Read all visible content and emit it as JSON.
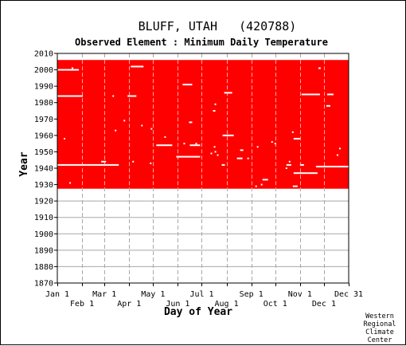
{
  "chart_data": {
    "type": "heatmap",
    "title": "BLUFF, UTAH   (420788)",
    "subtitle": "Observed Element : Minimum Daily Temperature",
    "xlabel": "Day of Year",
    "ylabel": "Year",
    "xlim": [
      1,
      366
    ],
    "ylim": [
      1870,
      2010
    ],
    "x_ticks_upper": [
      {
        "label": "Jan 1",
        "day": 1
      },
      {
        "label": "Mar 1",
        "day": 60
      },
      {
        "label": "May 1",
        "day": 121
      },
      {
        "label": "Jul 1",
        "day": 182
      },
      {
        "label": "Sep 1",
        "day": 244
      },
      {
        "label": "Nov 1",
        "day": 305
      },
      {
        "label": "Dec 31",
        "day": 366
      }
    ],
    "x_ticks_lower": [
      {
        "label": "Feb 1",
        "day": 32
      },
      {
        "label": "Apr 1",
        "day": 91
      },
      {
        "label": "Jun 1",
        "day": 152
      },
      {
        "label": "Aug 1",
        "day": 213
      },
      {
        "label": "Oct 1",
        "day": 274
      },
      {
        "label": "Dec 1",
        "day": 335
      }
    ],
    "y_ticks": [
      1870,
      1880,
      1890,
      1900,
      1910,
      1920,
      1930,
      1940,
      1950,
      1960,
      1970,
      1980,
      1990,
      2000,
      2010
    ],
    "grid": true,
    "data_color": "#ff0000",
    "record_period": {
      "start_year": 1927.5,
      "end_year": 2006
    },
    "missing_segments": [
      {
        "year": 2000,
        "day_start": 1,
        "day_end": 28
      },
      {
        "year": 2002,
        "day_start": 93,
        "day_end": 109
      },
      {
        "year": 1984,
        "day_start": 1,
        "day_end": 33
      },
      {
        "year": 1984,
        "day_start": 89,
        "day_end": 100
      },
      {
        "year": 1942,
        "day_start": 1,
        "day_end": 78
      },
      {
        "year": 1991,
        "day_start": 158,
        "day_end": 170
      },
      {
        "year": 1986,
        "day_start": 210,
        "day_end": 220
      },
      {
        "year": 1960,
        "day_start": 208,
        "day_end": 222
      },
      {
        "year": 1954,
        "day_start": 125,
        "day_end": 145
      },
      {
        "year": 1947,
        "day_start": 150,
        "day_end": 180
      },
      {
        "year": 1946,
        "day_start": 226,
        "day_end": 233
      },
      {
        "year": 1954,
        "day_start": 167,
        "day_end": 180
      },
      {
        "year": 1985,
        "day_start": 307,
        "day_end": 330
      },
      {
        "year": 1985,
        "day_start": 339,
        "day_end": 347
      },
      {
        "year": 1978,
        "day_start": 338,
        "day_end": 343
      },
      {
        "year": 1951,
        "day_start": 230,
        "day_end": 234
      },
      {
        "year": 1941,
        "day_start": 325,
        "day_end": 338
      },
      {
        "year": 1941,
        "day_start": 335,
        "day_end": 366
      },
      {
        "year": 1937,
        "day_start": 297,
        "day_end": 327
      },
      {
        "year": 1958,
        "day_start": 297,
        "day_end": 305
      },
      {
        "year": 1933,
        "day_start": 258,
        "day_end": 265
      },
      {
        "year": 1929,
        "day_start": 296,
        "day_end": 302
      },
      {
        "year": 1944,
        "day_start": 56,
        "day_end": 62
      },
      {
        "year": 1968,
        "day_start": 166,
        "day_end": 170
      },
      {
        "year": 1975,
        "day_start": 196,
        "day_end": 199
      },
      {
        "year": 1942,
        "day_start": 207,
        "day_end": 211
      },
      {
        "year": 1942,
        "day_start": 288,
        "day_end": 294
      },
      {
        "year": 1942,
        "day_start": 305,
        "day_end": 310
      },
      {
        "year": 2001,
        "day_start": 328,
        "day_end": 331
      }
    ],
    "missing_days": [
      {
        "year": 2001,
        "day": 20
      },
      {
        "year": 1931,
        "day": 17
      },
      {
        "year": 1958,
        "day": 10
      },
      {
        "year": 1984,
        "day": 71
      },
      {
        "year": 1966,
        "day": 107
      },
      {
        "year": 1964,
        "day": 119
      },
      {
        "year": 1959,
        "day": 136
      },
      {
        "year": 1955,
        "day": 160
      },
      {
        "year": 1955,
        "day": 175
      },
      {
        "year": 1953,
        "day": 198
      },
      {
        "year": 1950,
        "day": 199
      },
      {
        "year": 1949,
        "day": 194
      },
      {
        "year": 1948,
        "day": 202
      },
      {
        "year": 1953,
        "day": 252
      },
      {
        "year": 1956,
        "day": 270
      },
      {
        "year": 1955,
        "day": 274
      },
      {
        "year": 1962,
        "day": 296
      },
      {
        "year": 1940,
        "day": 288
      },
      {
        "year": 1943,
        "day": 118
      },
      {
        "year": 1946,
        "day": 240
      },
      {
        "year": 1948,
        "day": 352
      },
      {
        "year": 1952,
        "day": 355
      },
      {
        "year": 1944,
        "day": 96
      },
      {
        "year": 1929,
        "day": 250
      },
      {
        "year": 1930,
        "day": 257
      },
      {
        "year": 1963,
        "day": 74
      },
      {
        "year": 1969,
        "day": 85
      },
      {
        "year": 1979,
        "day": 199
      },
      {
        "year": 1944,
        "day": 292
      }
    ]
  },
  "credit": [
    "Western",
    "Regional",
    "Climate",
    "Center"
  ]
}
